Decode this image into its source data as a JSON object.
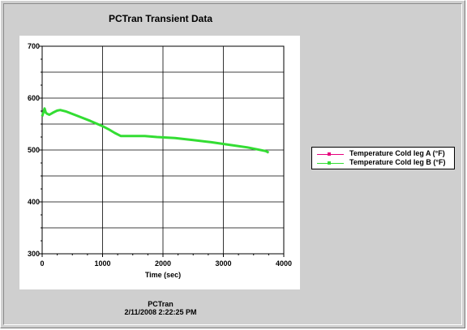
{
  "chart_data": {
    "type": "line",
    "title": "PCTran Transient Data",
    "xlabel": "Time (sec)",
    "ylabel": "",
    "xlim": [
      0,
      4000
    ],
    "ylim": [
      300,
      700
    ],
    "x_ticks": [
      "0",
      "1000",
      "2000",
      "3000",
      "4000"
    ],
    "y_ticks": [
      "300",
      "400",
      "500",
      "600",
      "700"
    ],
    "grid": true,
    "legend_position": "right",
    "series": [
      {
        "name": "Temperature Cold leg A (°F)",
        "color": "#e6007e",
        "x": [
          0,
          40,
          60,
          80,
          120,
          180,
          250,
          300,
          400,
          600,
          800,
          1000,
          1100,
          1200,
          1300,
          1500,
          1700,
          1900,
          2200,
          2500,
          2800,
          3100,
          3400,
          3700,
          3750
        ],
        "y": [
          565,
          580,
          572,
          570,
          568,
          572,
          576,
          577,
          574,
          565,
          556,
          546,
          540,
          533,
          527,
          527,
          527,
          525,
          523,
          519,
          515,
          510,
          505,
          498,
          495
        ]
      },
      {
        "name": "Temperature Cold leg B (°F)",
        "color": "#33dd33",
        "x": [
          0,
          40,
          60,
          80,
          120,
          180,
          250,
          300,
          400,
          600,
          800,
          1000,
          1100,
          1200,
          1300,
          1500,
          1700,
          1900,
          2200,
          2500,
          2800,
          3100,
          3400,
          3700,
          3750
        ],
        "y": [
          565,
          580,
          572,
          570,
          568,
          572,
          576,
          577,
          574,
          565,
          556,
          546,
          540,
          533,
          527,
          527,
          527,
          525,
          523,
          519,
          515,
          510,
          505,
          498,
          495
        ]
      }
    ]
  },
  "footer": {
    "line1": "PCTran",
    "line2": "2/11/2008 2:22:25 PM"
  }
}
